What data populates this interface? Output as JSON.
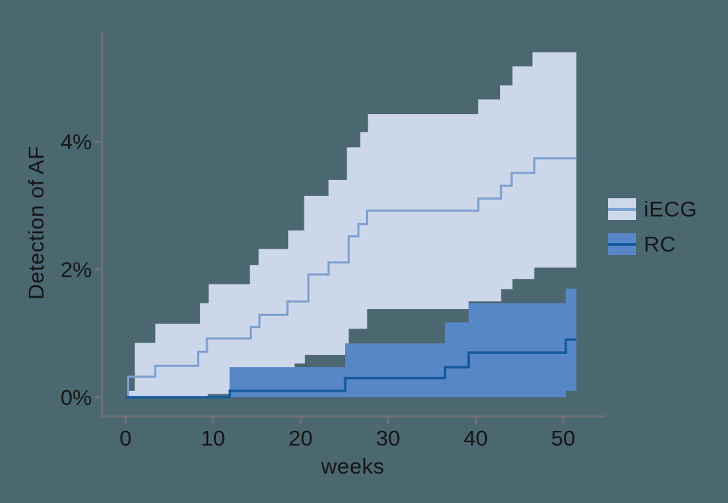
{
  "colors": {
    "background": "#4b6871",
    "axis": "#6e7174",
    "text": "#161616"
  },
  "chart_data": {
    "type": "line",
    "subtype": "step-curves-with-confidence-bands",
    "title": "",
    "xlabel": "weeks",
    "ylabel": "Detection of AF",
    "x_ticks": [
      0,
      10,
      20,
      30,
      40,
      50
    ],
    "y_ticks": [
      {
        "value": 0,
        "label": "0%"
      },
      {
        "value": 2,
        "label": "2%"
      },
      {
        "value": 4,
        "label": "4%"
      }
    ],
    "x_axis_range_weeks": [
      0,
      54.7
    ],
    "y_axis_range_pct": [
      0,
      5.73
    ],
    "end_week": 51.5,
    "grid": false,
    "legend_position": "right-center",
    "series": [
      {
        "name": "iECG",
        "fill_color": "#ccd7e9",
        "line_color": "#7d9fd2",
        "estimate_steps_week_pct": [
          [
            0,
            0
          ],
          [
            0.3,
            0.32
          ],
          [
            3.4,
            0.49
          ],
          [
            8.3,
            0.71
          ],
          [
            9.3,
            0.92
          ],
          [
            14.3,
            1.1
          ],
          [
            15.3,
            1.29
          ],
          [
            18.5,
            1.5
          ],
          [
            20.9,
            1.92
          ],
          [
            23.2,
            2.11
          ],
          [
            25.5,
            2.52
          ],
          [
            26.6,
            2.71
          ],
          [
            27.6,
            2.92
          ],
          [
            40.3,
            3.11
          ],
          [
            42.9,
            3.31
          ],
          [
            44.1,
            3.51
          ],
          [
            46.7,
            3.74
          ]
        ],
        "upper_ci_steps_week_pct": [
          [
            0.25,
            0.1
          ],
          [
            1.05,
            0.85
          ],
          [
            3.4,
            1.15
          ],
          [
            8.5,
            1.47
          ],
          [
            9.5,
            1.77
          ],
          [
            14.2,
            2.07
          ],
          [
            15.2,
            2.32
          ],
          [
            18.6,
            2.61
          ],
          [
            20.4,
            3.15
          ],
          [
            23.2,
            3.4
          ],
          [
            25.3,
            3.91
          ],
          [
            26.8,
            4.15
          ],
          [
            27.7,
            4.43
          ],
          [
            40.3,
            4.66
          ],
          [
            42.8,
            4.88
          ],
          [
            44.2,
            5.18
          ],
          [
            46.5,
            5.4
          ]
        ],
        "lower_ci_steps_week_pct": [
          [
            0.25,
            0
          ],
          [
            9.4,
            0.05
          ],
          [
            14.3,
            0.2
          ],
          [
            15.3,
            0.3
          ],
          [
            18.5,
            0.45
          ],
          [
            19.3,
            0.53
          ],
          [
            20.5,
            0.66
          ],
          [
            25.1,
            0.84
          ],
          [
            25.5,
            1.07
          ],
          [
            27.6,
            1.38
          ],
          [
            39.2,
            1.5
          ],
          [
            42.9,
            1.69
          ],
          [
            44.2,
            1.85
          ],
          [
            46.7,
            2.03
          ]
        ]
      },
      {
        "name": "RC",
        "fill_color": "#5887c8",
        "line_color": "#145a9e",
        "estimate_steps_week_pct": [
          [
            0,
            0
          ],
          [
            11.9,
            0.1
          ],
          [
            25.1,
            0.3
          ],
          [
            36.5,
            0.47
          ],
          [
            39.2,
            0.7
          ],
          [
            50.3,
            0.9
          ]
        ],
        "upper_ci_steps_week_pct": [
          [
            11.9,
            0.47
          ],
          [
            25.1,
            0.84
          ],
          [
            36.5,
            1.17
          ],
          [
            39.2,
            1.47
          ],
          [
            50.3,
            1.7
          ]
        ],
        "lower_ci_steps_week_pct": [
          [
            11.9,
            0
          ],
          [
            50.3,
            0.1
          ]
        ]
      }
    ]
  }
}
